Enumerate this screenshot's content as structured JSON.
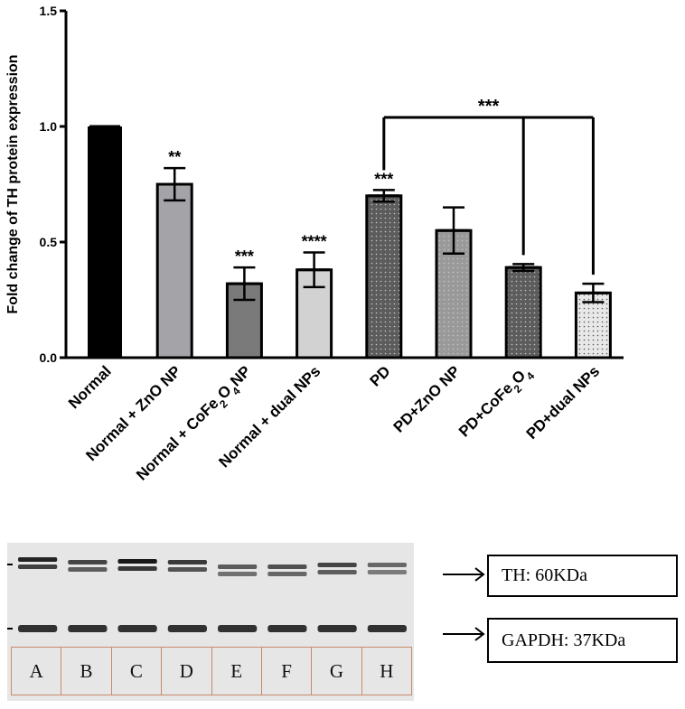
{
  "chart_data": {
    "type": "bar",
    "ylabel": "Fold change of TH protein expression",
    "xlabel": "",
    "ylim": [
      0,
      1.5
    ],
    "yticks": [
      "0.0",
      "0.5",
      "1.0",
      "1.5"
    ],
    "categories": [
      "Normal",
      "Normal + ZnO NP",
      "Normal + CoFe2O4NP",
      "Normal + dual NPs",
      "PD",
      "PD+ZnO NP",
      "PD+CoFe2O4",
      "PD+dual NPs"
    ],
    "values": [
      1.0,
      0.75,
      0.32,
      0.38,
      0.7,
      0.55,
      0.39,
      0.28
    ],
    "errors": [
      0.0,
      0.07,
      0.07,
      0.075,
      0.025,
      0.1,
      0.015,
      0.04
    ],
    "significance": [
      "",
      "**",
      "***",
      "****",
      "***",
      "",
      "",
      ""
    ],
    "bar_colors": [
      "#000000",
      "#a4a4a8",
      "#7a7a7a",
      "#d2d2d2",
      "#5c5c5c",
      "#999999",
      "#5c5c5c",
      "#e8e8e8"
    ],
    "bar_patterns": [
      "solid",
      "solid",
      "solid",
      "solid",
      "dots",
      "dots",
      "dots",
      "dots"
    ],
    "comparison": {
      "from": 4,
      "to": [
        6,
        7
      ],
      "label": "***"
    }
  },
  "blot": {
    "lanes": [
      "A",
      "B",
      "C",
      "D",
      "E",
      "F",
      "G",
      "H"
    ],
    "labels": [
      "TH: 60KDa",
      "GAPDH: 37KDa"
    ]
  }
}
